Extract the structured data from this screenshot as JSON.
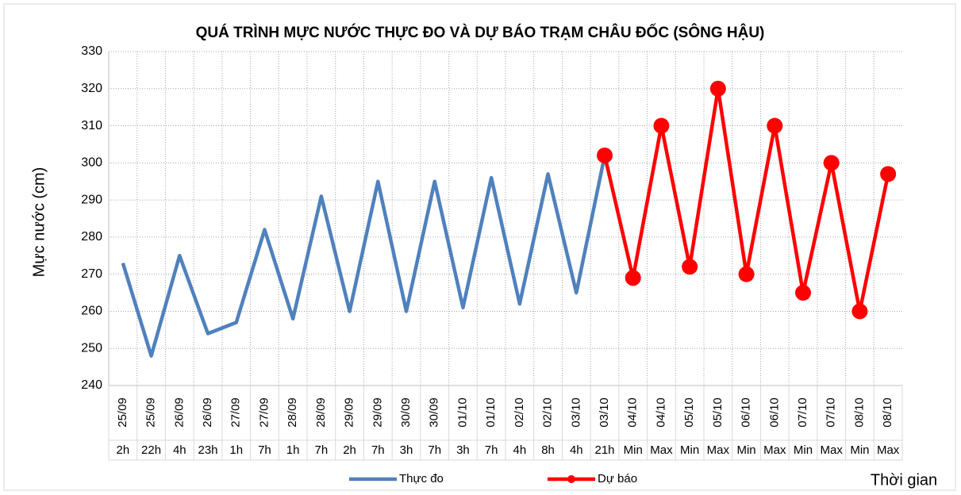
{
  "chart_data": {
    "type": "line",
    "title": "QUÁ TRÌNH MỰC NƯỚC THỰC ĐO VÀ DỰ BÁO TRẠM CHÂU ĐỐC (SÔNG HẬU)",
    "ylabel": "Mực nước (cm)",
    "xlabel": "Thời gian",
    "categories": [
      [
        "25/09",
        "2h"
      ],
      [
        "25/09",
        "22h"
      ],
      [
        "26/09",
        "4h"
      ],
      [
        "26/09",
        "23h"
      ],
      [
        "27/09",
        "1h"
      ],
      [
        "27/09",
        "7h"
      ],
      [
        "28/09",
        "1h"
      ],
      [
        "28/09",
        "7h"
      ],
      [
        "29/09",
        "2h"
      ],
      [
        "29/09",
        "7h"
      ],
      [
        "30/09",
        "3h"
      ],
      [
        "30/09",
        "7h"
      ],
      [
        "01/10",
        "3h"
      ],
      [
        "01/10",
        "7h"
      ],
      [
        "02/10",
        "4h"
      ],
      [
        "02/10",
        "8h"
      ],
      [
        "03/10",
        "4h"
      ],
      [
        "03/10",
        "21h"
      ],
      [
        "04/10",
        "Min"
      ],
      [
        "04/10",
        "Max"
      ],
      [
        "05/10",
        "Min"
      ],
      [
        "05/10",
        "Max"
      ],
      [
        "06/10",
        "Min"
      ],
      [
        "06/10",
        "Max"
      ],
      [
        "07/10",
        "Min"
      ],
      [
        "07/10",
        "Max"
      ],
      [
        "08/10",
        "Min"
      ],
      [
        "08/10",
        "Max"
      ]
    ],
    "series": [
      {
        "name": "Thực đo",
        "color": "#4f81bd",
        "marker": false,
        "values": [
          273,
          248,
          275,
          254,
          257,
          282,
          258,
          291,
          260,
          295,
          260,
          295,
          261,
          296,
          262,
          297,
          265,
          302,
          null,
          null,
          null,
          null,
          null,
          null,
          null,
          null,
          null,
          null
        ]
      },
      {
        "name": "Dự báo",
        "color": "#ff0000",
        "marker": true,
        "values": [
          null,
          null,
          null,
          null,
          null,
          null,
          null,
          null,
          null,
          null,
          null,
          null,
          null,
          null,
          null,
          null,
          null,
          302,
          269,
          310,
          272,
          320,
          270,
          310,
          265,
          300,
          260,
          297
        ]
      }
    ],
    "ylim": [
      240,
      330
    ],
    "yticks": [
      240,
      250,
      260,
      270,
      280,
      290,
      300,
      310,
      320,
      330
    ],
    "grid": true,
    "legend": "bottom"
  }
}
